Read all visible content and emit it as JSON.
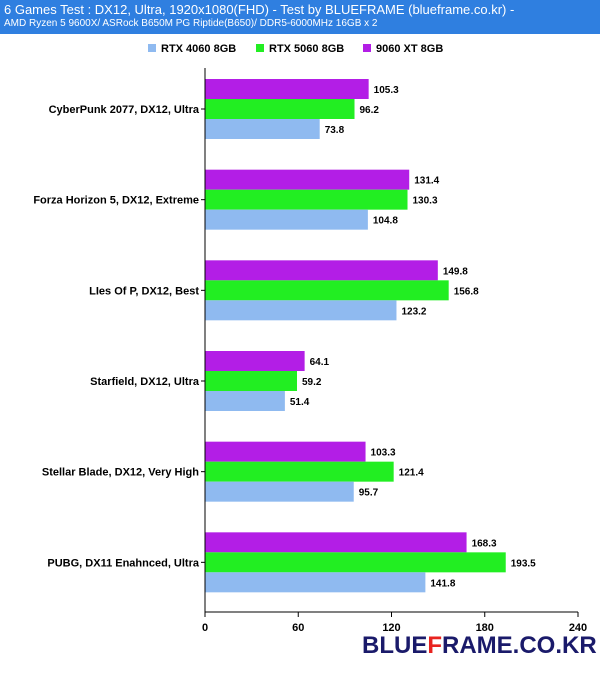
{
  "header": {
    "title": "6 Games Test : DX12, Ultra, 1920x1080(FHD) - Test by BLUEFRAME (blueframe.co.kr) -",
    "subtitle": "AMD Ryzen 5 9600X/ ASRock B650M PG Riptide(B650)/ DDR5-6000MHz 16GB x 2",
    "color": "#2f7fe0"
  },
  "watermark": {
    "part1": "BLUE",
    "part2": "F",
    "part3": "RAME.CO.KR"
  },
  "chart_data": {
    "type": "bar",
    "orientation": "horizontal",
    "categories": [
      "CyberPunk 2077, DX12, Ultra",
      "Forza Horizon 5, DX12, Extreme",
      "LIes Of P, DX12, Best",
      "Starfield, DX12, Ultra",
      "Stellar Blade, DX12, Very High",
      "PUBG, DX11 Enahnced, Ultra"
    ],
    "series": [
      {
        "name": "RTX 4060 8GB",
        "color": "#8fbaf0",
        "values": [
          73.8,
          104.8,
          123.2,
          51.4,
          95.7,
          141.8
        ]
      },
      {
        "name": "RTX 5060 8GB",
        "color": "#22ee22",
        "values": [
          96.2,
          130.3,
          156.8,
          59.2,
          121.4,
          193.5
        ]
      },
      {
        "name": "9060 XT 8GB",
        "color": "#b31ee6",
        "values": [
          105.3,
          131.4,
          149.8,
          64.1,
          103.3,
          168.3
        ]
      }
    ],
    "value_labels": [
      [
        "73.8",
        "104.8",
        "123.2",
        "51.4",
        "95.7",
        "141.8"
      ],
      [
        "96.2",
        "130.3",
        "156.8",
        "59.2",
        "121.4",
        "193.5"
      ],
      [
        "105.3",
        "131.4",
        "149.8",
        "64.1",
        "103.3",
        "168.3"
      ]
    ],
    "xlim": [
      0,
      240
    ],
    "xticks": [
      0,
      60,
      120,
      180,
      240
    ],
    "xtick_labels": [
      "0",
      "60",
      "120",
      "180",
      "240"
    ],
    "legend_position": "top",
    "grid": false
  }
}
